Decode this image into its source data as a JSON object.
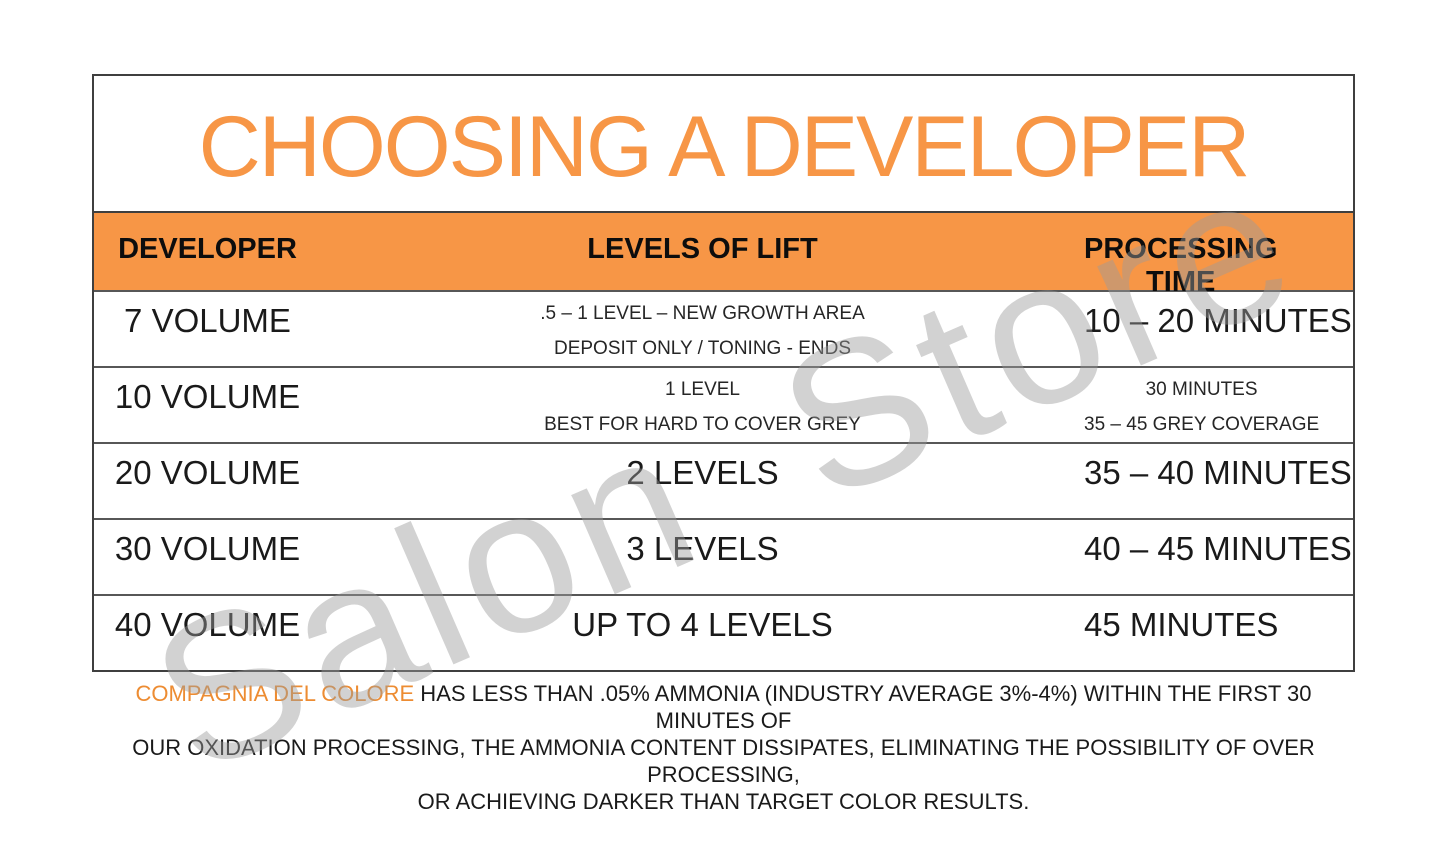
{
  "title": "CHOOSING A DEVELOPER",
  "watermark": "Salon Store",
  "colors": {
    "accent_orange": "#F79646",
    "brand_orange": "#ED8C32",
    "body_text": "#1A1A1A",
    "border_dark": "#3F3F3F",
    "row_line": "#575757",
    "watermark_gray": "#D2D2D2"
  },
  "table": {
    "headers": [
      "DEVELOPER",
      "LEVELS OF LIFT",
      "PROCESSING TIME"
    ],
    "rows": [
      {
        "developer": "7 VOLUME",
        "lift_lines": [
          ".5 – 1 LEVEL – NEW GROWTH AREA",
          "DEPOSIT ONLY / TONING - ENDS"
        ],
        "time_lines": [
          "10 – 20 MINUTES"
        ]
      },
      {
        "developer": "10 VOLUME",
        "lift_lines": [
          "1 LEVEL",
          "BEST FOR HARD TO COVER GREY"
        ],
        "time_lines": [
          "30 MINUTES",
          "35 – 45 GREY COVERAGE"
        ]
      },
      {
        "developer": "20 VOLUME",
        "lift_lines": [
          "2 LEVELS"
        ],
        "time_lines": [
          "35 – 40 MINUTES"
        ]
      },
      {
        "developer": "30 VOLUME",
        "lift_lines": [
          "3 LEVELS"
        ],
        "time_lines": [
          "40 – 45 MINUTES"
        ]
      },
      {
        "developer": "40 VOLUME",
        "lift_lines": [
          "UP TO 4 LEVELS"
        ],
        "time_lines": [
          "45 MINUTES"
        ]
      }
    ]
  },
  "footnote": {
    "brand": "COMPAGNIA DEL COLORE",
    "line1_rest": " HAS LESS THAN .05% AMMONIA (INDUSTRY AVERAGE 3%-4%) WITHIN THE FIRST 30 MINUTES OF",
    "line2": "OUR OXIDATION PROCESSING, THE AMMONIA CONTENT DISSIPATES, ELIMINATING THE POSSIBILITY OF OVER PROCESSING,",
    "line3": "OR ACHIEVING DARKER THAN TARGET COLOR RESULTS."
  }
}
